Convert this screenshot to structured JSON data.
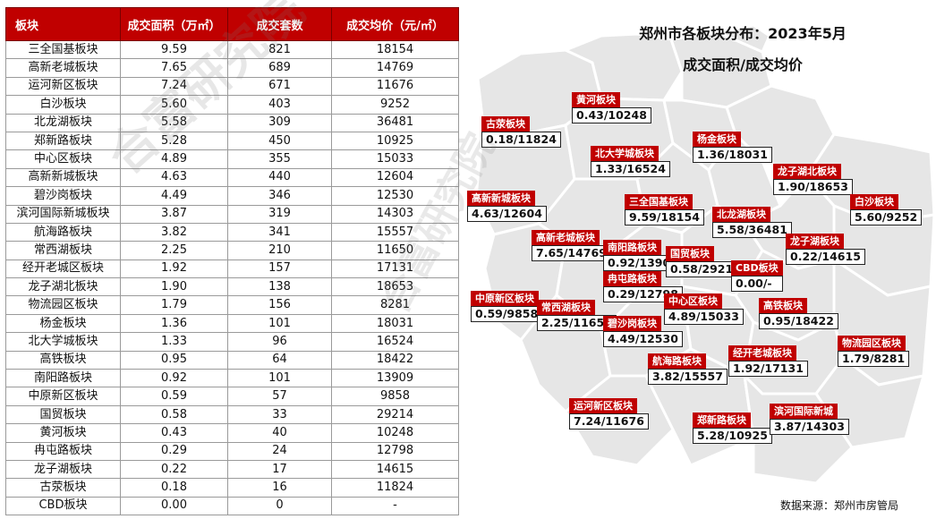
{
  "table": {
    "headers": [
      "板块",
      "成交面积（万㎡）",
      "成交套数",
      "成交均价（元/㎡）"
    ],
    "rows": [
      [
        "三全国基板块",
        "9.59",
        "821",
        "18154"
      ],
      [
        "高新老城板块",
        "7.65",
        "689",
        "14769"
      ],
      [
        "运河新区板块",
        "7.24",
        "671",
        "11676"
      ],
      [
        "白沙板块",
        "5.60",
        "403",
        "9252"
      ],
      [
        "北龙湖板块",
        "5.58",
        "309",
        "36481"
      ],
      [
        "郑新路板块",
        "5.28",
        "450",
        "10925"
      ],
      [
        "中心区板块",
        "4.89",
        "355",
        "15033"
      ],
      [
        "高新新城板块",
        "4.63",
        "440",
        "12604"
      ],
      [
        "碧沙岗板块",
        "4.49",
        "346",
        "12530"
      ],
      [
        "滨河国际新城板块",
        "3.87",
        "319",
        "14303"
      ],
      [
        "航海路板块",
        "3.82",
        "341",
        "15557"
      ],
      [
        "常西湖板块",
        "2.25",
        "210",
        "11650"
      ],
      [
        "经开老城区板块",
        "1.92",
        "157",
        "17131"
      ],
      [
        "龙子湖北板块",
        "1.90",
        "138",
        "18653"
      ],
      [
        "物流园区板块",
        "1.79",
        "156",
        "8281"
      ],
      [
        "杨金板块",
        "1.36",
        "101",
        "18031"
      ],
      [
        "北大学城板块",
        "1.33",
        "96",
        "16524"
      ],
      [
        "高铁板块",
        "0.95",
        "64",
        "18422"
      ],
      [
        "南阳路板块",
        "0.92",
        "101",
        "13909"
      ],
      [
        "中原新区板块",
        "0.59",
        "57",
        "9858"
      ],
      [
        "国贸板块",
        "0.58",
        "33",
        "29214"
      ],
      [
        "黄河板块",
        "0.43",
        "40",
        "10248"
      ],
      [
        "冉屯路板块",
        "0.29",
        "24",
        "12798"
      ],
      [
        "龙子湖板块",
        "0.22",
        "17",
        "14615"
      ],
      [
        "古荥板块",
        "0.18",
        "16",
        "11824"
      ],
      [
        "CBD板块",
        "0.00",
        "0",
        "-"
      ]
    ]
  },
  "map": {
    "title_line1": "郑州市各板块分布：2023年5月",
    "title_line2": "成交面积/成交均价",
    "source": "数据来源：郑州市房管局",
    "watermark": "合富研究院",
    "labels": [
      {
        "name": "黄河板块",
        "value": "0.43/10248"
      },
      {
        "name": "古荥板块",
        "value": "0.18/11824"
      },
      {
        "name": "北大学城板块",
        "value": "1.33/16524"
      },
      {
        "name": "杨金板块",
        "value": "1.36/18031"
      },
      {
        "name": "龙子湖北板块",
        "value": "1.90/18653"
      },
      {
        "name": "高新新城板块",
        "value": "4.63/12604"
      },
      {
        "name": "三全国基板块",
        "value": "9.59/18154"
      },
      {
        "name": "北龙湖板块",
        "value": "5.58/36481"
      },
      {
        "name": "白沙板块",
        "value": "5.60/9252"
      },
      {
        "name": "高新老城板块",
        "value": "7.65/14769"
      },
      {
        "name": "南阳路板块",
        "value": "0.92/13909"
      },
      {
        "name": "国贸板块",
        "value": "0.58/29214"
      },
      {
        "name": "龙子湖板块",
        "value": "0.22/14615"
      },
      {
        "name": "CBD板块",
        "value": "0.00/-"
      },
      {
        "name": "冉屯路板块",
        "value": "0.29/12798"
      },
      {
        "name": "中原新区板块",
        "value": "0.59/9858"
      },
      {
        "name": "常西湖板块",
        "value": "2.25/11650"
      },
      {
        "name": "中心区板块",
        "value": "4.89/15033"
      },
      {
        "name": "高铁板块",
        "value": "0.95/18422"
      },
      {
        "name": "碧沙岗板块",
        "value": "4.49/12530"
      },
      {
        "name": "物流园区板块",
        "value": "1.79/8281"
      },
      {
        "name": "经开老城板块",
        "value": "1.92/17131"
      },
      {
        "name": "航海路板块",
        "value": "3.82/15557"
      },
      {
        "name": "运河新区板块",
        "value": "7.24/11676"
      },
      {
        "name": "郑新路板块",
        "value": "5.28/10925"
      },
      {
        "name": "滨河国际新城",
        "value": "3.87/14303"
      }
    ]
  },
  "colors": {
    "header_red": "#c00000",
    "map_fill": "#e6e6e6",
    "map_stroke": "#ffffff"
  }
}
